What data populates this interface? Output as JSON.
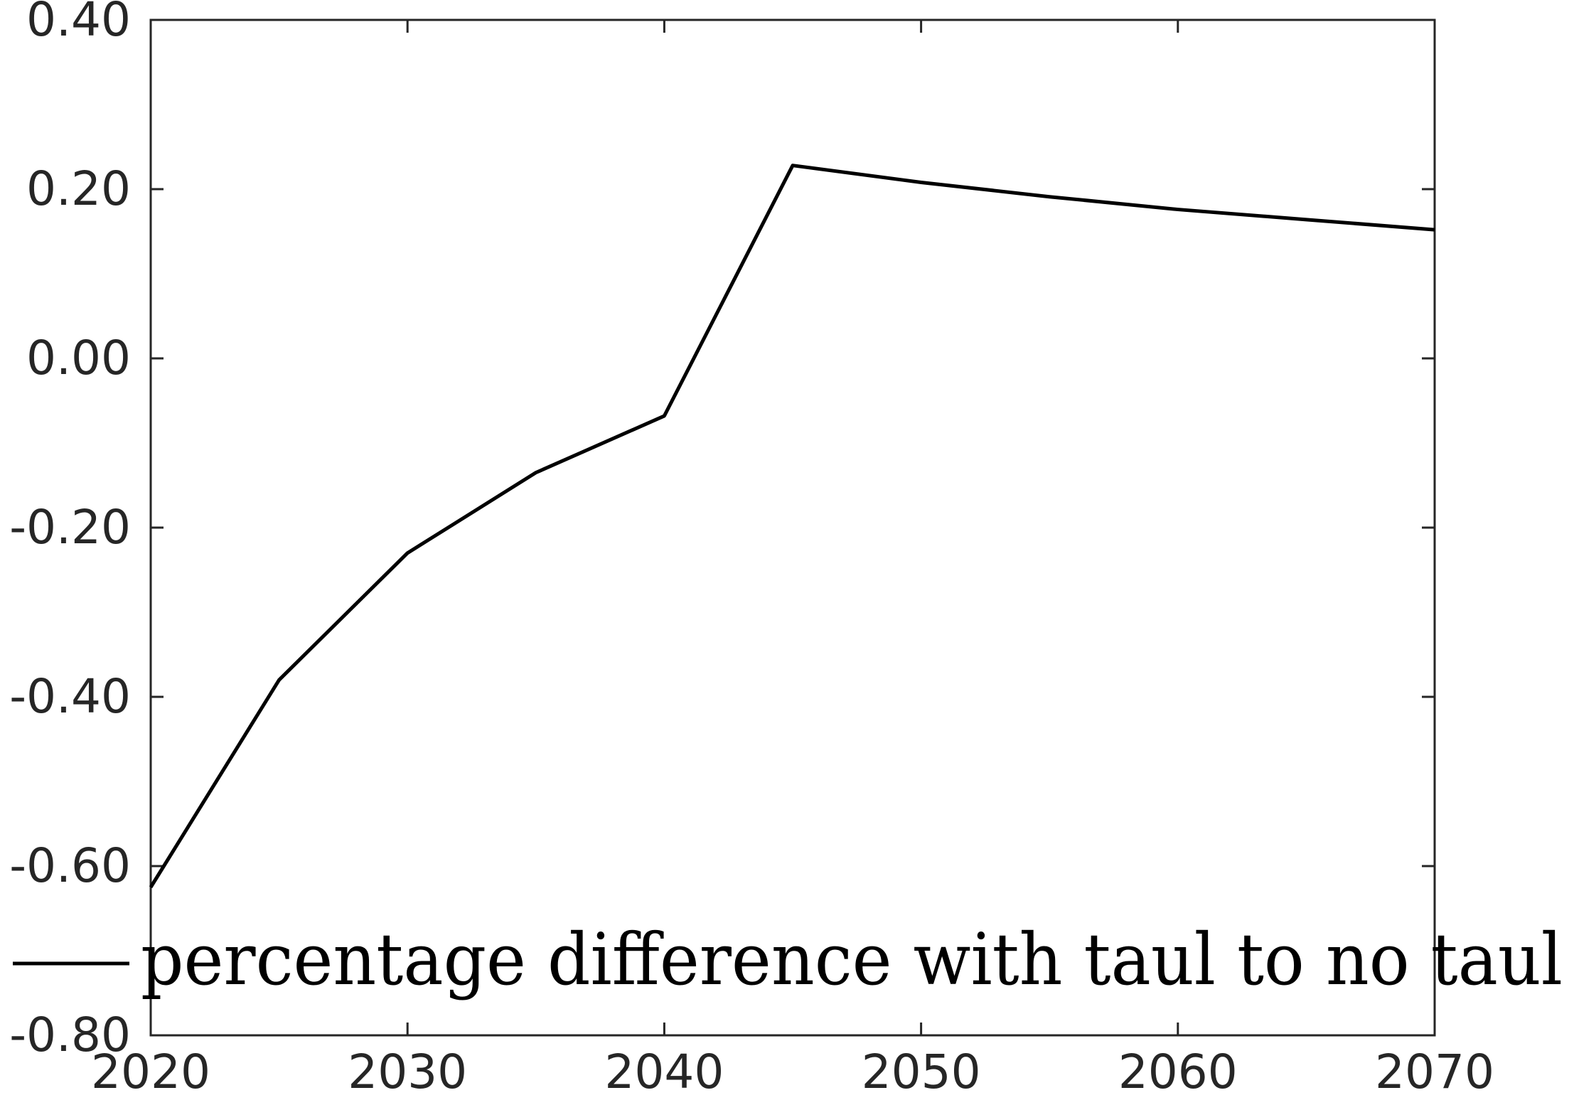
{
  "chart_data": {
    "type": "line",
    "title": "",
    "xlabel": "",
    "ylabel": "",
    "x": [
      2020,
      2025,
      2030,
      2035,
      2040,
      2045,
      2050,
      2055,
      2060,
      2065,
      2070
    ],
    "series": [
      {
        "name": "percentage difference with taul to no taul",
        "values": [
          -0.625,
          -0.38,
          -0.23,
          -0.135,
          -0.068,
          0.228,
          0.208,
          0.191,
          0.176,
          0.164,
          0.152
        ],
        "color": "#000000"
      }
    ],
    "xlim": [
      2020,
      2070
    ],
    "ylim": [
      -0.8,
      0.4
    ],
    "xticks": [
      2020,
      2030,
      2040,
      2050,
      2060,
      2070
    ],
    "xtick_labels": [
      "2020",
      "2030",
      "2040",
      "2050",
      "2060",
      "2070"
    ],
    "yticks": [
      -0.8,
      -0.6,
      -0.4,
      -0.2,
      0.0,
      0.2,
      0.4
    ],
    "ytick_labels": [
      "-0.80",
      "-0.60",
      "-0.40",
      "-0.20",
      "0.00",
      "0.20",
      "0.40"
    ],
    "grid": false,
    "legend_position": "bottom"
  },
  "colors": {
    "axis": "#262626",
    "line": "#000000"
  }
}
